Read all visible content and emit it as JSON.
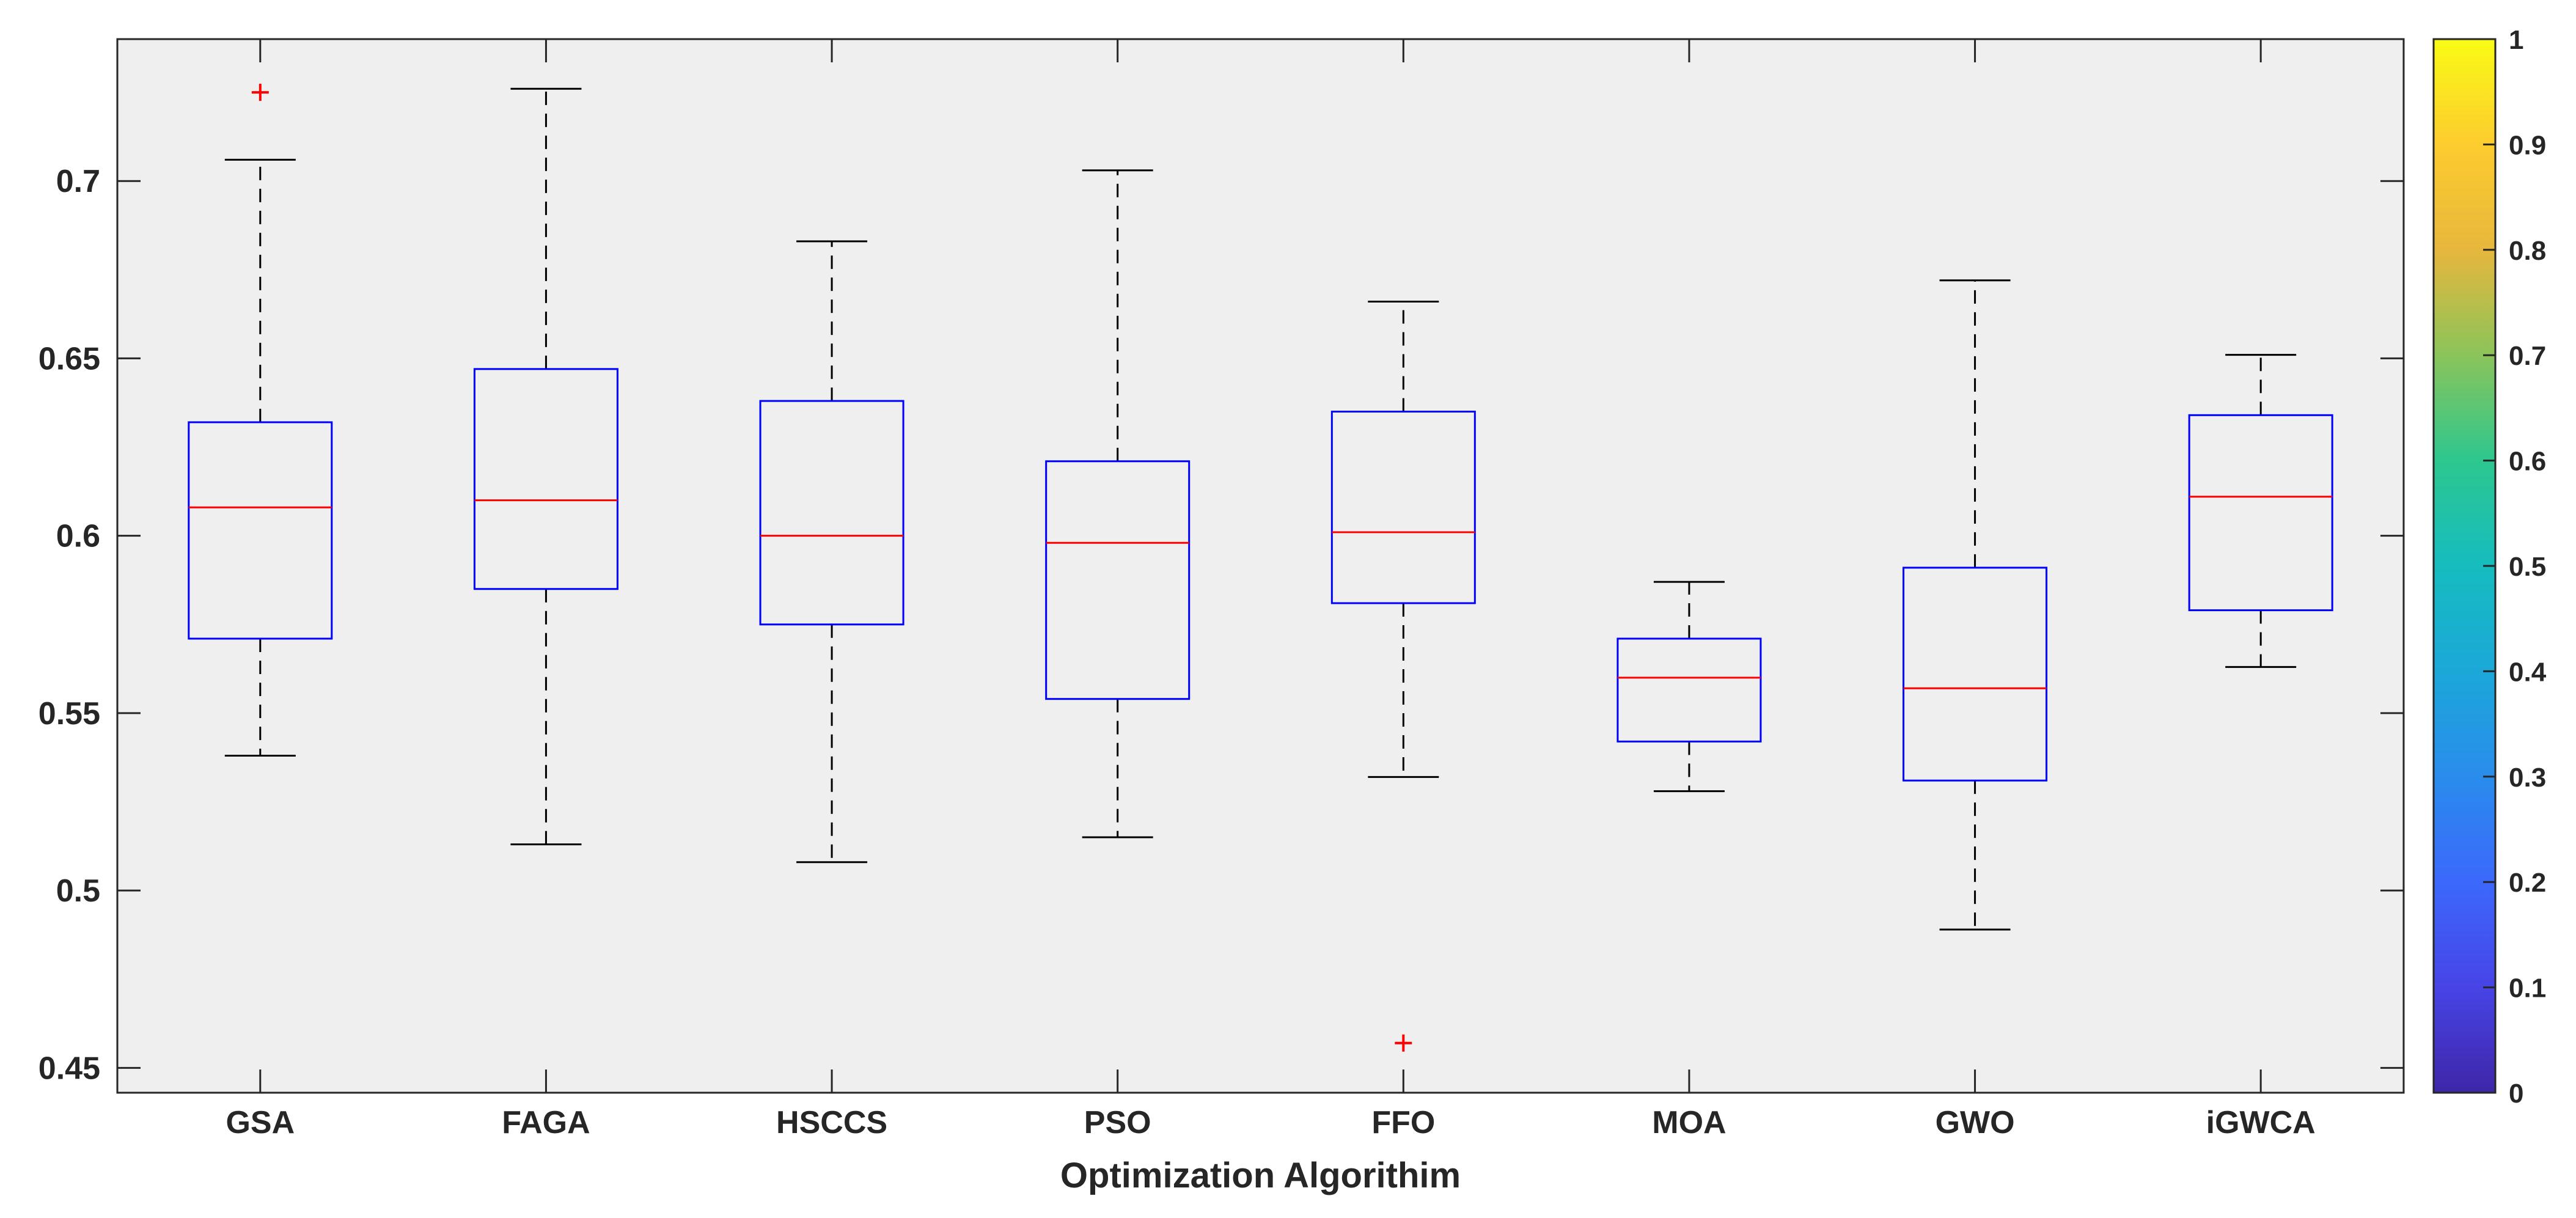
{
  "chart_data": {
    "type": "boxplot",
    "title": "",
    "xlabel": "Optimization Algorithim",
    "ylabel": "",
    "ylim": [
      0.443,
      0.74
    ],
    "yticks": [
      0.45,
      0.5,
      0.55,
      0.6,
      0.65,
      0.7
    ],
    "ytick_labels": [
      "0.45",
      "0.5",
      "0.55",
      "0.6",
      "0.65",
      "0.7"
    ],
    "grid": false,
    "categories": [
      "GSA",
      "FAGA",
      "HSCCS",
      "PSO",
      "FFO",
      "MOA",
      "GWO",
      "iGWCA"
    ],
    "boxes": [
      {
        "name": "GSA",
        "whisker_low": 0.538,
        "q1": 0.571,
        "median": 0.608,
        "q3": 0.632,
        "whisker_high": 0.706,
        "outliers": [
          0.725
        ]
      },
      {
        "name": "FAGA",
        "whisker_low": 0.513,
        "q1": 0.585,
        "median": 0.61,
        "q3": 0.647,
        "whisker_high": 0.726,
        "outliers": []
      },
      {
        "name": "HSCCS",
        "whisker_low": 0.508,
        "q1": 0.575,
        "median": 0.6,
        "q3": 0.638,
        "whisker_high": 0.683,
        "outliers": []
      },
      {
        "name": "PSO",
        "whisker_low": 0.515,
        "q1": 0.554,
        "median": 0.598,
        "q3": 0.621,
        "whisker_high": 0.703,
        "outliers": []
      },
      {
        "name": "FFO",
        "whisker_low": 0.532,
        "q1": 0.581,
        "median": 0.601,
        "q3": 0.635,
        "whisker_high": 0.666,
        "outliers": [
          0.457
        ]
      },
      {
        "name": "MOA",
        "whisker_low": 0.528,
        "q1": 0.542,
        "median": 0.56,
        "q3": 0.571,
        "whisker_high": 0.587,
        "outliers": []
      },
      {
        "name": "GWO",
        "whisker_low": 0.489,
        "q1": 0.531,
        "median": 0.557,
        "q3": 0.591,
        "whisker_high": 0.672,
        "outliers": []
      },
      {
        "name": "iGWCA",
        "whisker_low": 0.563,
        "q1": 0.579,
        "median": 0.611,
        "q3": 0.634,
        "whisker_high": 0.651,
        "outliers": []
      }
    ],
    "colorbar": {
      "range": [
        0,
        1
      ],
      "ticks": [
        0,
        0.1,
        0.2,
        0.3,
        0.4,
        0.5,
        0.6,
        0.7,
        0.8,
        0.9,
        1
      ],
      "tick_labels": [
        "0",
        "0.1",
        "0.2",
        "0.3",
        "0.4",
        "0.5",
        "0.6",
        "0.7",
        "0.8",
        "0.9",
        "1"
      ],
      "colormap": "parula"
    },
    "colors": {
      "plot_background": "#efefef",
      "box": "#0000ff",
      "median": "#ff0000",
      "whisker": "#000000",
      "outlier": "#ff0000",
      "axis": "#262626"
    }
  }
}
